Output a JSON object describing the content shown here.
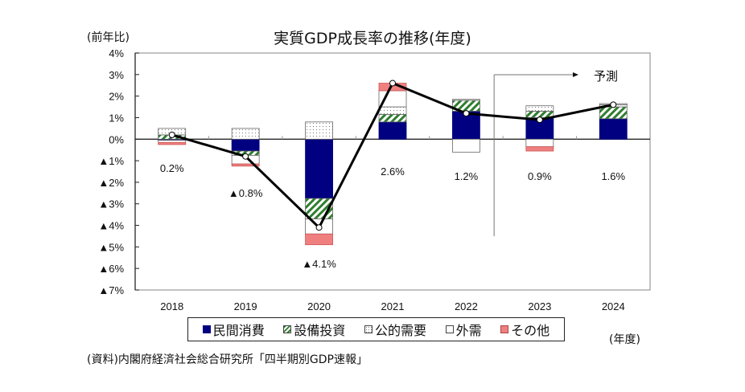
{
  "chart_data": {
    "type": "bar",
    "subtype": "stacked-bar-with-line",
    "title": "実質GDP成長率の推移(年度)",
    "ylabel": "(前年比)",
    "xlabel": "(年度)",
    "ylim": [
      -7,
      4
    ],
    "y_ticks": [
      4,
      3,
      2,
      1,
      0,
      -1,
      -2,
      -3,
      -4,
      -5,
      -6,
      -7
    ],
    "y_tick_labels": [
      "4%",
      "3%",
      "2%",
      "1%",
      "0%",
      "▲1%",
      "▲2%",
      "▲3%",
      "▲4%",
      "▲5%",
      "▲6%",
      "▲7%"
    ],
    "categories": [
      "2018",
      "2019",
      "2020",
      "2021",
      "2022",
      "2023",
      "2024"
    ],
    "series": [
      {
        "name": "民間消費",
        "color": "#000080",
        "pattern": "solid",
        "values": [
          -0.05,
          -0.55,
          -2.75,
          0.8,
          1.3,
          1.0,
          0.95
        ]
      },
      {
        "name": "設備投資",
        "color": "#2e7d2e",
        "pattern": "diagonal-stripes",
        "values": [
          0.2,
          -0.2,
          -0.95,
          0.35,
          0.5,
          0.3,
          0.55
        ]
      },
      {
        "name": "公的需要",
        "color": "#888888",
        "pattern": "dots",
        "values": [
          0.3,
          0.5,
          0.8,
          0.35,
          0.05,
          0.25,
          0.1
        ]
      },
      {
        "name": "外需",
        "color": "#ffffff",
        "pattern": "outline",
        "values": [
          -0.1,
          -0.4,
          -0.7,
          0.75,
          -0.6,
          -0.35,
          0.05
        ]
      },
      {
        "name": "その他",
        "color": "#f08080",
        "pattern": "solid",
        "values": [
          -0.1,
          -0.1,
          -0.5,
          0.35,
          0.0,
          -0.2,
          0.0
        ]
      }
    ],
    "line": {
      "name": "実質GDP成長率",
      "values": [
        0.2,
        -0.8,
        -4.1,
        2.6,
        1.2,
        0.9,
        1.6
      ]
    },
    "data_labels": [
      "0.2%",
      "▲0.8%",
      "▲4.1%",
      "2.6%",
      "1.2%",
      "0.9%",
      "1.6%"
    ],
    "forecast_annotation": {
      "label": "予測",
      "from_category": "2023"
    },
    "legend_position": "bottom",
    "grid": false
  },
  "labels": {
    "title": "実質GDP成長率の推移(年度)",
    "y_unit": "(前年比)",
    "x_unit": "(年度)",
    "source": "(資料)内閣府経済社会総合研究所「四半期別GDP速報」",
    "forecast": "予測"
  }
}
